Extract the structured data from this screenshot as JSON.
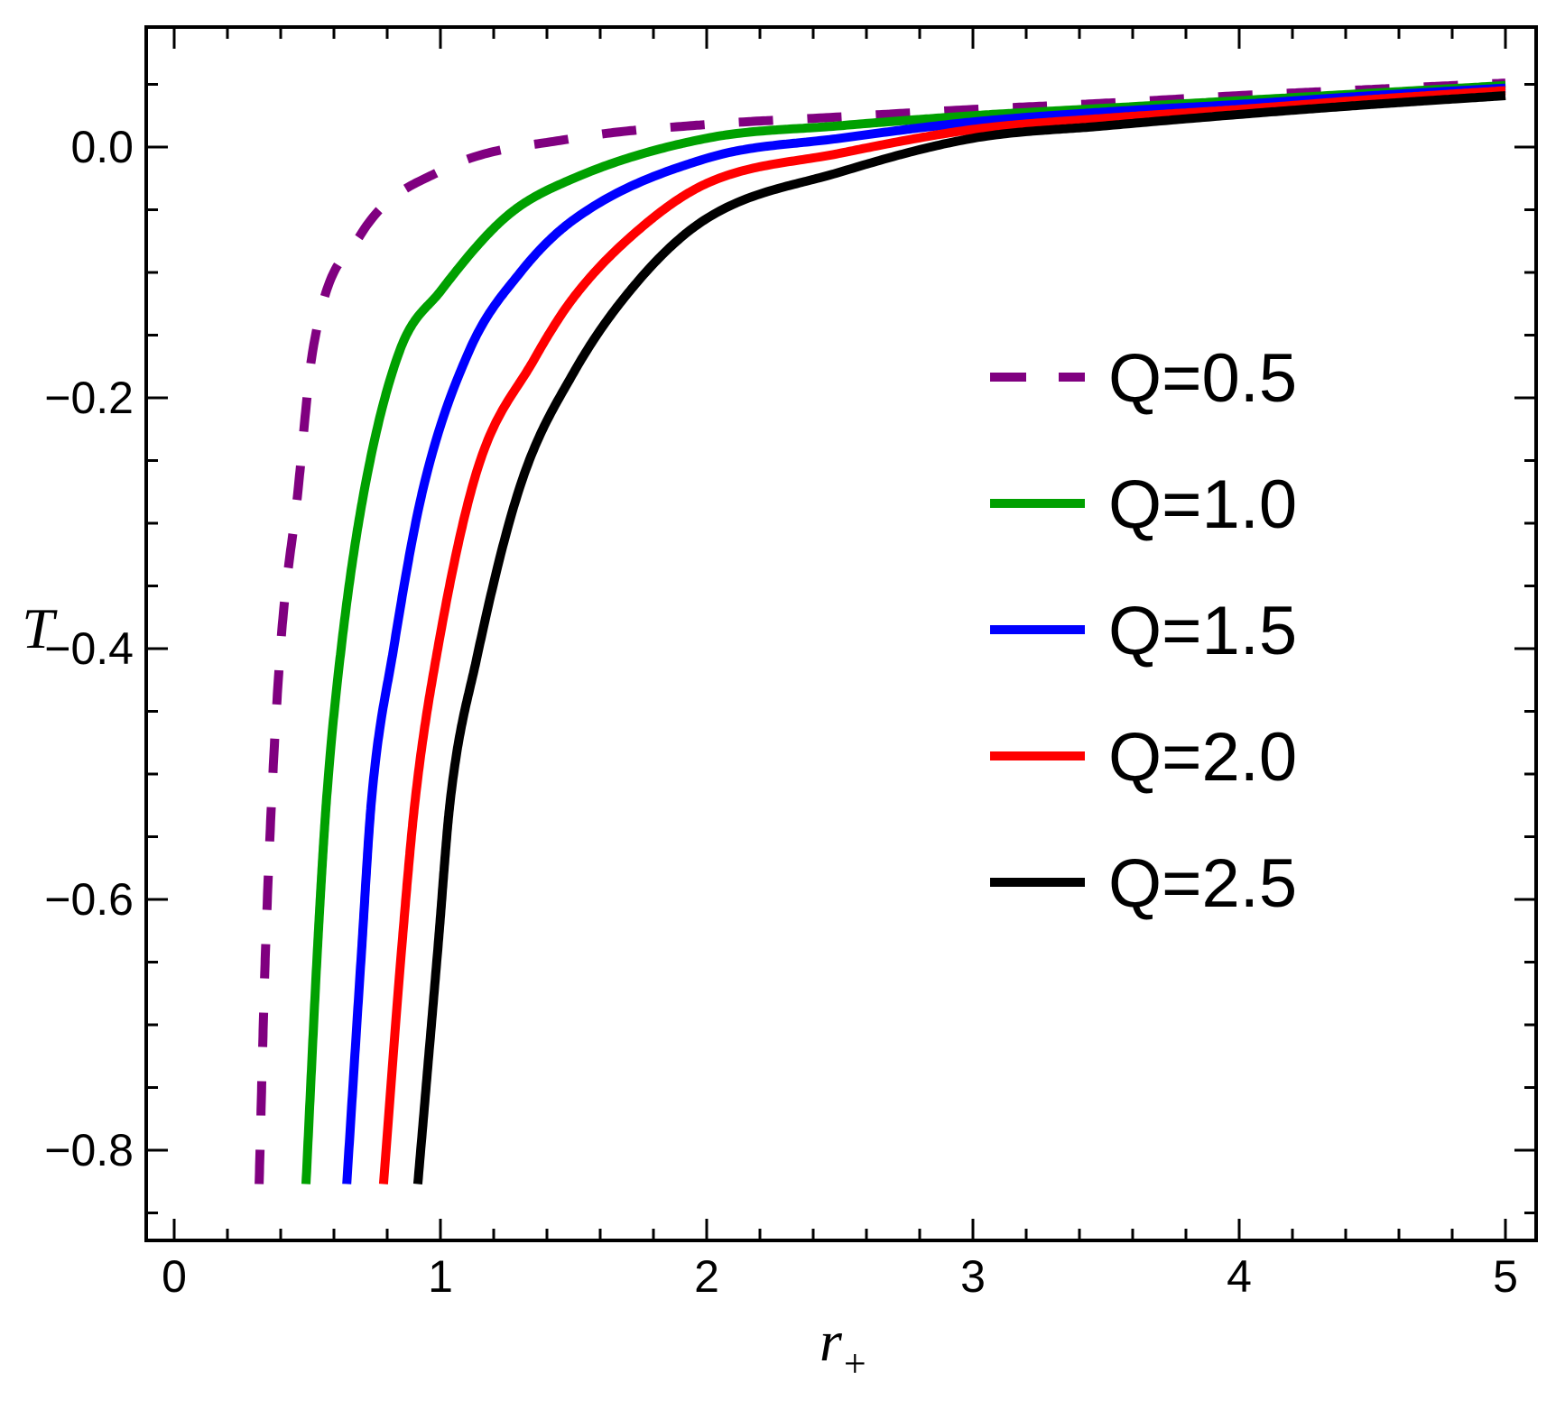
{
  "figure": {
    "background": "#FFFFFF",
    "frame_color": "#000000",
    "tick_color": "#000000",
    "label_color": "#000000"
  },
  "chart_data": {
    "type": "line",
    "title": "",
    "xlabel_main": "r",
    "xlabel_sub": "+",
    "ylabel": "T",
    "xlim": [
      -0.105,
      5.115
    ],
    "ylim": [
      -0.872,
      0.096
    ],
    "grid": false,
    "legend_position": "inside-upper-right",
    "x_ticks": {
      "values": [
        0,
        1,
        2,
        3,
        4,
        5
      ],
      "labels": [
        "0",
        "1",
        "2",
        "3",
        "4",
        "5"
      ],
      "minor_step": 0.2
    },
    "y_ticks": {
      "values": [
        0,
        -0.2,
        -0.4,
        -0.6,
        -0.8
      ],
      "labels": [
        "0.0",
        "−0.2",
        "−0.4",
        "−0.6",
        "−0.8"
      ],
      "minor_step": 0.05
    },
    "series": [
      {
        "name": "Q=0.5",
        "Q": 0.5,
        "color": "#800080",
        "style": "dashed",
        "points": [
          [
            0.319,
            -0.827
          ],
          [
            0.343,
            -0.64
          ],
          [
            0.394,
            -0.415
          ],
          [
            0.464,
            -0.276
          ],
          [
            0.52,
            -0.163
          ],
          [
            0.7,
            -0.07
          ],
          [
            1.0,
            -0.019
          ],
          [
            1.5,
            0.007
          ],
          [
            2.0,
            0.018
          ],
          [
            2.5,
            0.024
          ],
          [
            3.0,
            0.03
          ],
          [
            3.5,
            0.035
          ],
          [
            4.0,
            0.041
          ],
          [
            4.5,
            0.046
          ],
          [
            5.0,
            0.051
          ]
        ]
      },
      {
        "name": "Q=1.0",
        "Q": 1.0,
        "color": "#00A000",
        "style": "solid",
        "points": [
          [
            0.495,
            -0.827
          ],
          [
            0.538,
            -0.64
          ],
          [
            0.572,
            -0.521
          ],
          [
            0.627,
            -0.4
          ],
          [
            0.712,
            -0.276
          ],
          [
            0.846,
            -0.163
          ],
          [
            1.0,
            -0.115
          ],
          [
            1.25,
            -0.055
          ],
          [
            1.5,
            -0.025
          ],
          [
            2.0,
            0.007
          ],
          [
            2.5,
            0.017
          ],
          [
            3.0,
            0.025
          ],
          [
            3.5,
            0.031
          ],
          [
            4.0,
            0.037
          ],
          [
            4.5,
            0.043
          ],
          [
            5.0,
            0.049
          ]
        ]
      },
      {
        "name": "Q=1.5",
        "Q": 1.5,
        "color": "#0000FF",
        "style": "solid",
        "points": [
          [
            0.648,
            -0.827
          ],
          [
            0.704,
            -0.64
          ],
          [
            0.741,
            -0.521
          ],
          [
            0.824,
            -0.4
          ],
          [
            0.931,
            -0.276
          ],
          [
            1.107,
            -0.163
          ],
          [
            1.3,
            -0.1
          ],
          [
            1.5,
            -0.058
          ],
          [
            2.0,
            -0.009
          ],
          [
            2.5,
            0.007
          ],
          [
            3.0,
            0.02
          ],
          [
            3.5,
            0.028
          ],
          [
            4.0,
            0.034
          ],
          [
            4.5,
            0.041
          ],
          [
            5.0,
            0.047
          ]
        ]
      },
      {
        "name": "Q=2.0",
        "Q": 2.0,
        "color": "#FF0000",
        "style": "solid",
        "points": [
          [
            0.786,
            -0.827
          ],
          [
            0.854,
            -0.64
          ],
          [
            0.905,
            -0.521
          ],
          [
            0.99,
            -0.4
          ],
          [
            1.136,
            -0.259
          ],
          [
            1.35,
            -0.17
          ],
          [
            1.5,
            -0.12
          ],
          [
            1.75,
            -0.065
          ],
          [
            2.0,
            -0.029
          ],
          [
            2.5,
            -0.005
          ],
          [
            3.0,
            0.014
          ],
          [
            3.5,
            0.023
          ],
          [
            4.0,
            0.03
          ],
          [
            4.5,
            0.038
          ],
          [
            5.0,
            0.045
          ]
        ]
      },
      {
        "name": "Q=2.5",
        "Q": 2.5,
        "color": "#000000",
        "style": "solid",
        "points": [
          [
            0.915,
            -0.827
          ],
          [
            0.99,
            -0.64
          ],
          [
            1.037,
            -0.521
          ],
          [
            1.136,
            -0.408
          ],
          [
            1.3,
            -0.27
          ],
          [
            1.5,
            -0.18
          ],
          [
            1.75,
            -0.105
          ],
          [
            2.0,
            -0.057
          ],
          [
            2.5,
            -0.02
          ],
          [
            3.0,
            0.007
          ],
          [
            3.5,
            0.017
          ],
          [
            4.0,
            0.026
          ],
          [
            4.5,
            0.034
          ],
          [
            5.0,
            0.041
          ]
        ]
      }
    ]
  }
}
